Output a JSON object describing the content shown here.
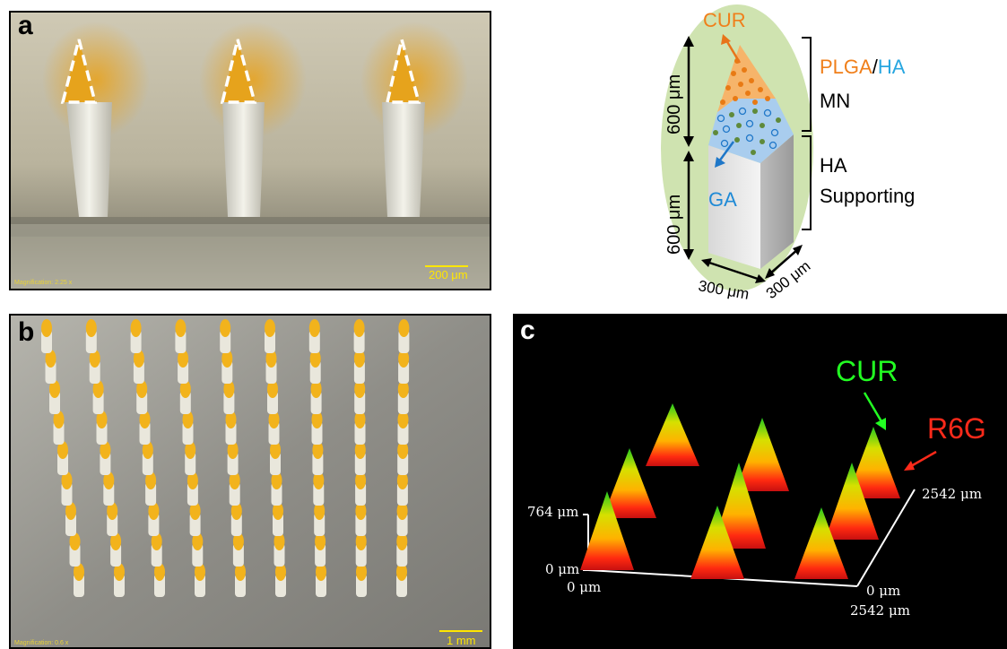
{
  "panel_a": {
    "label": "a",
    "scalebar": "200 μm",
    "magnification": "Magnification: 2.25 x"
  },
  "panel_b": {
    "label": "b",
    "scalebar": "1 mm",
    "magnification": "Magnification: 0.6 x"
  },
  "panel_c": {
    "label": "c",
    "cur_label": "CUR",
    "r6g_label": "R6G",
    "z_top": "764 μm",
    "z_bottom": "0 μm",
    "x_start": "0 μm",
    "x_end_top": "0 μm",
    "x_end_bottom": "2542 μm",
    "y_end": "2542 μm"
  },
  "schematic": {
    "cur": "CUR",
    "ga": "GA",
    "dim_upper": "600 μm",
    "dim_lower": "600 μm",
    "width1": "300 μm",
    "width2": "300 μm",
    "plga": "PLGA",
    "slash": "/",
    "ha_top": "HA",
    "mn": "MN",
    "ha_bottom": "HA",
    "supporting": "Supporting"
  },
  "colors": {
    "orange": "#f07f1a",
    "blue": "#27a6e0",
    "green_oval": "#cfe3b0",
    "cur_green": "#22ff22",
    "r6g_red": "#ff2a1a"
  }
}
